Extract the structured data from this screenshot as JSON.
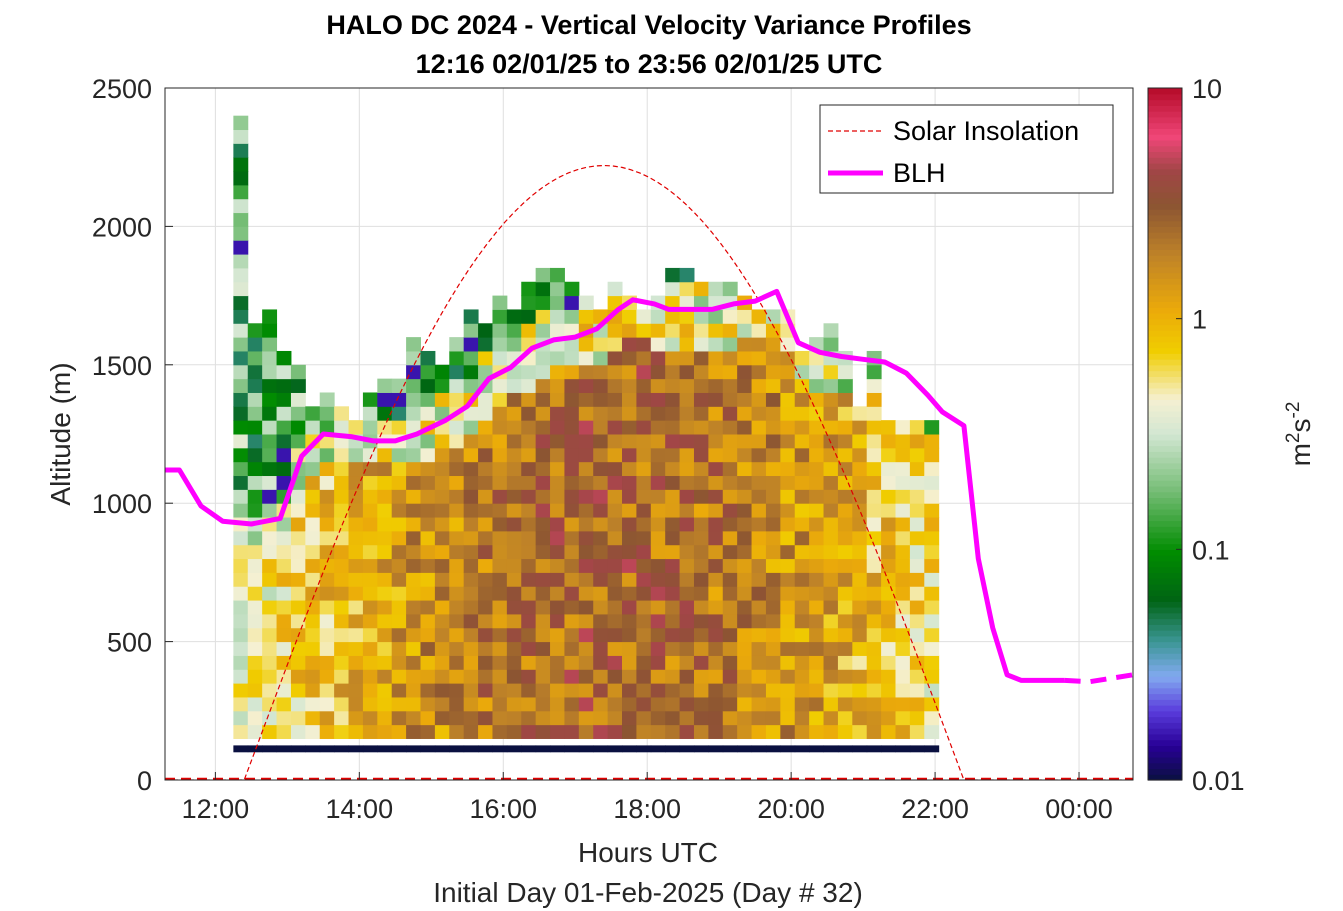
{
  "chart_data": {
    "type": "heatmap",
    "title": "HALO DC 2024 - Vertical Velocity Variance Profiles",
    "subtitle": "12:16 02/01/25 to 23:56 02/01/25  UTC",
    "xlabel": "Hours UTC",
    "xlabel2": "Initial Day 01-Feb-2025 (Day # 32)",
    "ylabel": "Altitude (m)",
    "xlim": [
      11.3,
      24.75
    ],
    "ylim": [
      0,
      2500
    ],
    "x_ticks": [
      12,
      14,
      16,
      18,
      20,
      22,
      24
    ],
    "x_tick_labels": [
      "12:00",
      "14:00",
      "16:00",
      "18:00",
      "20:00",
      "22:00",
      "00:00"
    ],
    "y_ticks": [
      0,
      500,
      1000,
      1500,
      2000,
      2500
    ],
    "y_tick_labels": [
      "0",
      "500",
      "1000",
      "1500",
      "2000",
      "2500"
    ],
    "grid": true,
    "colorbar": {
      "label_base": "m",
      "label_sup1": "2",
      "label_mid": "s",
      "label_sup2": "-2",
      "scale": "log",
      "range": [
        0.01,
        10
      ],
      "ticks": [
        0.01,
        0.1,
        1,
        10
      ],
      "tick_labels": [
        "0.01",
        "0.1",
        "1",
        "10"
      ]
    },
    "legend": {
      "position": "top-right",
      "entries": [
        {
          "label": "Solar Insolation",
          "style": "dashed",
          "color": "#e00000"
        },
        {
          "label": "BLH",
          "style": "solid",
          "color": "#ff00ff"
        }
      ]
    },
    "heatmap": {
      "time_start": 12.25,
      "time_step": 0.2,
      "bin_bottom": 100,
      "bin_height": 50,
      "lowest_bin_value": 0.01,
      "column_tops": [
        2400,
        1650,
        1700,
        1550,
        1500,
        1350,
        1400,
        1350,
        1300,
        1400,
        1450,
        1450,
        1600,
        1550,
        1500,
        1600,
        1700,
        1650,
        1750,
        1700,
        1800,
        1850,
        1850,
        1800,
        1750,
        1700,
        1800,
        1750,
        1700,
        1750,
        1850,
        1850,
        1800,
        1800,
        1800,
        1750,
        1700,
        1700,
        1700,
        1550,
        1600,
        1650,
        1550,
        1350,
        1550,
        1300,
        1300,
        1300,
        1300
      ],
      "blh_step_offset": 0.875
    },
    "series": [
      {
        "name": "BLH",
        "x": [
          11.3,
          11.5,
          11.8,
          12.1,
          12.5,
          12.9,
          13.2,
          13.5,
          13.9,
          14.2,
          14.5,
          14.8,
          15.2,
          15.5,
          15.8,
          16.1,
          16.4,
          16.7,
          17.0,
          17.3,
          17.6,
          17.8,
          18.1,
          18.3,
          18.6,
          18.9,
          19.2,
          19.5,
          19.8,
          20.1,
          20.4,
          20.7,
          21.0,
          21.3,
          21.6,
          21.9,
          22.1,
          22.4,
          22.6,
          22.8,
          23.0,
          23.2,
          23.5,
          23.8
        ],
        "y": [
          1120,
          1120,
          990,
          935,
          925,
          945,
          1170,
          1250,
          1240,
          1225,
          1225,
          1250,
          1300,
          1350,
          1450,
          1490,
          1560,
          1590,
          1600,
          1630,
          1700,
          1735,
          1720,
          1700,
          1700,
          1700,
          1720,
          1730,
          1765,
          1580,
          1545,
          1530,
          1520,
          1510,
          1470,
          1390,
          1330,
          1280,
          800,
          550,
          380,
          360,
          360,
          360
        ]
      },
      {
        "name": "BLH (extension)",
        "x": [
          23.8,
          24.15,
          24.75
        ],
        "y": [
          360,
          355,
          380
        ]
      }
    ],
    "solar": {
      "name": "Solar Insolation",
      "sunrise": 12.4,
      "sunset": 22.4,
      "peak_x": 17.4,
      "peak_y": 2220
    },
    "colors": {
      "blh": "#ff00ff",
      "solar": "#e00000",
      "bottom_bin": "#0a1040"
    }
  }
}
